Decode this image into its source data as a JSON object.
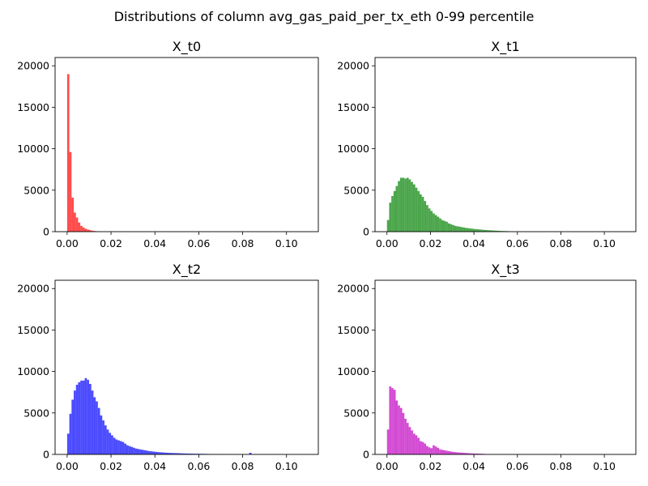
{
  "figure": {
    "title": "Distributions of column avg_gas_paid_per_tx_eth 0-99 percentile"
  },
  "chart_data": [
    {
      "type": "bar",
      "title": "X_t0",
      "xlabel": "",
      "ylabel": "",
      "color": "#ff0000",
      "alpha": 0.7,
      "xlim": [
        -0.0055,
        0.1145
      ],
      "ylim": [
        0,
        21000
      ],
      "xticks": [
        "0.00",
        "0.02",
        "0.04",
        "0.06",
        "0.08",
        "0.10"
      ],
      "yticks": [
        "0",
        "5000",
        "10000",
        "15000",
        "20000"
      ],
      "bin_width": 0.001,
      "bin_start": 0.0,
      "values": [
        19000,
        9600,
        4100,
        2300,
        1700,
        1100,
        700,
        500,
        350,
        250,
        180,
        120,
        80,
        50,
        30
      ]
    },
    {
      "type": "bar",
      "title": "X_t1",
      "xlabel": "",
      "ylabel": "",
      "color": "#008000",
      "alpha": 0.7,
      "xlim": [
        -0.0055,
        0.1145
      ],
      "ylim": [
        0,
        21000
      ],
      "xticks": [
        "0.00",
        "0.02",
        "0.04",
        "0.06",
        "0.08",
        "0.10"
      ],
      "yticks": [
        "0",
        "5000",
        "10000",
        "15000",
        "20000"
      ],
      "bin_width": 0.001,
      "bin_start": 0.0,
      "values": [
        1400,
        3500,
        4300,
        4900,
        5500,
        6100,
        6500,
        6500,
        6400,
        6500,
        6300,
        6000,
        5700,
        5300,
        4900,
        4500,
        4200,
        3700,
        3200,
        2800,
        2500,
        2200,
        2000,
        1800,
        1600,
        1400,
        1300,
        1200,
        1000,
        900,
        800,
        700,
        650,
        600,
        550,
        500,
        450,
        420,
        380,
        350,
        320,
        300,
        270,
        250,
        220,
        200,
        180,
        160,
        150,
        130,
        120,
        100,
        90,
        80,
        70,
        60,
        50
      ]
    },
    {
      "type": "bar",
      "title": "X_t2",
      "xlabel": "",
      "ylabel": "",
      "color": "#0000ff",
      "alpha": 0.7,
      "xlim": [
        -0.0055,
        0.1145
      ],
      "ylim": [
        0,
        21000
      ],
      "xticks": [
        "0.00",
        "0.02",
        "0.04",
        "0.06",
        "0.08",
        "0.10"
      ],
      "yticks": [
        "0",
        "5000",
        "10000",
        "15000",
        "20000"
      ],
      "bin_width": 0.001,
      "bin_start": 0.0,
      "values": [
        2500,
        4900,
        6600,
        7700,
        8400,
        8700,
        8900,
        8900,
        9200,
        9000,
        8500,
        7700,
        6900,
        6400,
        5600,
        4700,
        4100,
        3500,
        3000,
        2600,
        2300,
        2000,
        1800,
        1700,
        1600,
        1500,
        1300,
        1100,
        1000,
        900,
        800,
        700,
        650,
        600,
        550,
        500,
        450,
        400,
        370,
        340,
        310,
        280,
        260,
        240,
        220,
        200,
        190,
        180,
        170,
        160,
        150,
        140,
        130,
        120,
        110,
        100,
        95,
        90,
        85,
        80,
        75,
        70,
        65,
        60,
        55,
        50,
        45,
        40,
        35,
        30,
        25,
        20,
        20,
        20,
        20,
        20,
        20,
        15,
        15,
        15,
        15,
        15,
        15,
        200,
        15,
        10,
        10,
        10,
        10,
        10,
        10,
        10,
        10,
        10,
        10,
        10
      ]
    },
    {
      "type": "bar",
      "title": "X_t3",
      "xlabel": "",
      "ylabel": "",
      "color": "#c000c0",
      "alpha": 0.7,
      "xlim": [
        -0.0055,
        0.1145
      ],
      "ylim": [
        0,
        21000
      ],
      "xticks": [
        "0.00",
        "0.02",
        "0.04",
        "0.06",
        "0.08",
        "0.10"
      ],
      "yticks": [
        "0",
        "5000",
        "10000",
        "15000",
        "20000"
      ],
      "bin_width": 0.001,
      "bin_start": 0.0,
      "values": [
        3000,
        8200,
        8000,
        7800,
        6500,
        5900,
        5600,
        5000,
        4300,
        3800,
        3300,
        2900,
        2500,
        2300,
        2000,
        1600,
        1500,
        1300,
        1000,
        850,
        750,
        1100,
        950,
        800,
        600,
        550,
        500,
        450,
        400,
        350,
        300,
        270,
        250,
        230,
        210,
        190,
        170,
        150,
        130,
        120,
        110,
        100,
        90,
        80,
        70
      ]
    }
  ]
}
